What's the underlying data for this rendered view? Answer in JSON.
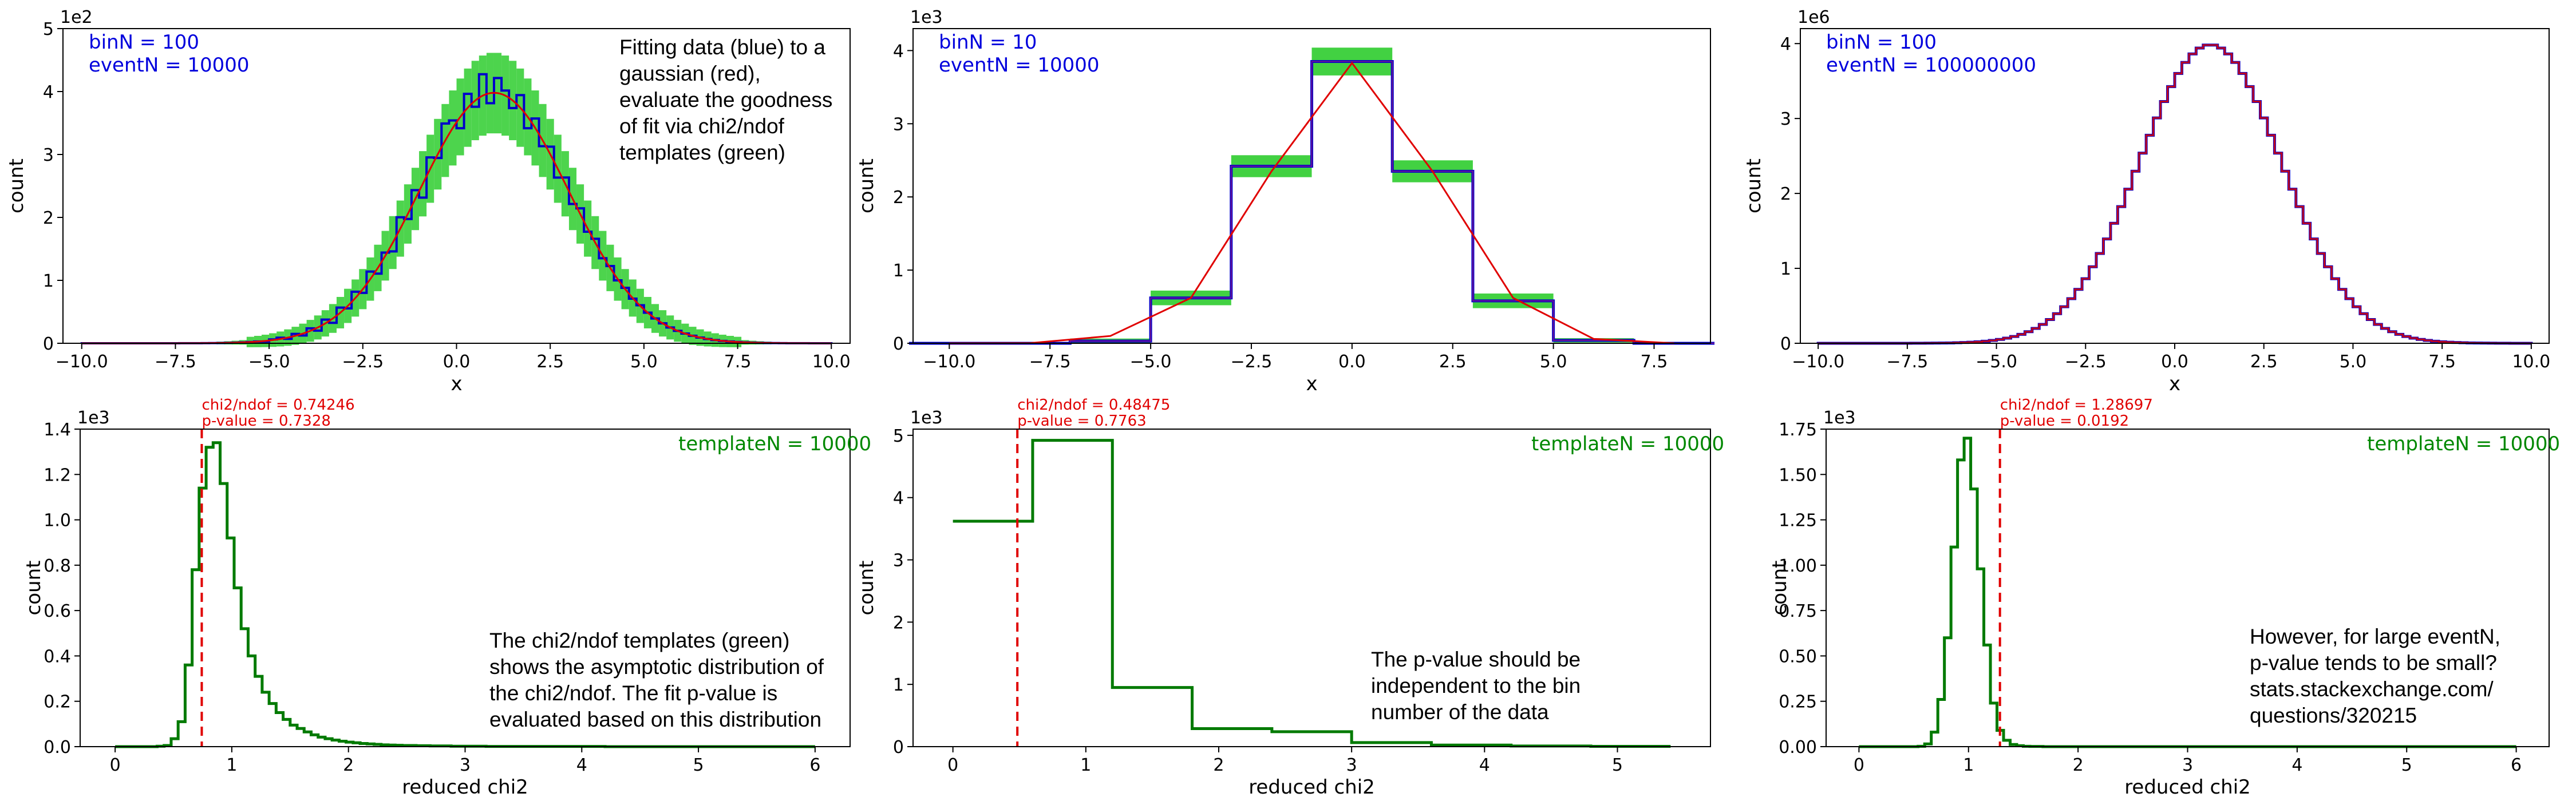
{
  "colors": {
    "data": "#0000cc",
    "fit": "#e00000",
    "template": "#2ecc2e",
    "chi_hist": "#007a00",
    "info": "#0000dd",
    "template_text": "#008800"
  },
  "chart_data": [
    {
      "type": "histogram",
      "xlabel": "x",
      "ylabel": "count",
      "y_offset_label": "1e2",
      "xlim": [
        -10.5,
        10.5
      ],
      "ylim": [
        0,
        500
      ],
      "xticks": [
        -10,
        -7.5,
        -5,
        -2.5,
        0,
        2.5,
        5,
        7.5,
        10
      ],
      "xtick_labels": [
        "−10.0",
        "−7.5",
        "−5.0",
        "−2.5",
        "0.0",
        "2.5",
        "5.0",
        "7.5",
        "10.0"
      ],
      "yticks": [
        0,
        100,
        200,
        300,
        400,
        500
      ],
      "ytick_labels": [
        "0",
        "1",
        "2",
        "3",
        "4",
        "5"
      ],
      "info": [
        "binN = 100",
        "eventN = 10000"
      ],
      "note": [
        "Fitting data (blue) to a",
        "gaussian (red),",
        "evaluate the goodness",
        "of fit via chi2/ndof",
        "templates (green)"
      ],
      "gaussian": {
        "mean": 1.0,
        "sigma": 2.0,
        "peak": 398
      },
      "bins": {
        "start": -10,
        "end": 10,
        "count": 100
      },
      "template_band_width": 60,
      "data_residuals": [
        0,
        0,
        0,
        0,
        0,
        0,
        0,
        0,
        0,
        0,
        0,
        0,
        0,
        0,
        0,
        0,
        0,
        0,
        0,
        0,
        0,
        0,
        0,
        0,
        -1,
        1,
        2,
        -2,
        3,
        -3,
        4,
        -5,
        6,
        -7,
        8,
        -4,
        10,
        -6,
        12,
        -9,
        5,
        -14,
        18,
        -8,
        14,
        -22,
        18,
        -6,
        27,
        12,
        -18,
        22,
        -10,
        34,
        -16,
        24,
        8,
        -12,
        20,
        -18,
        15,
        -9,
        12,
        -14,
        10,
        -8,
        9,
        -5,
        6,
        -4,
        3,
        -2,
        2,
        -1,
        1,
        0,
        0,
        0,
        0,
        0,
        0,
        0,
        0,
        0,
        0,
        0,
        0,
        0,
        0,
        0,
        0,
        0,
        0,
        0,
        0,
        0,
        0,
        0,
        0,
        0
      ]
    },
    {
      "type": "histogram",
      "xlabel": "x",
      "ylabel": "count",
      "y_offset_label": "1e3",
      "xlim": [
        -10.9,
        8.9
      ],
      "ylim": [
        0,
        4300
      ],
      "xticks": [
        -10,
        -7.5,
        -5,
        -2.5,
        0,
        2.5,
        5,
        7.5
      ],
      "xtick_labels": [
        "−10.0",
        "−7.5",
        "−5.0",
        "−2.5",
        "0.0",
        "2.5",
        "5.0",
        "7.5"
      ],
      "yticks": [
        0,
        1000,
        2000,
        3000,
        4000
      ],
      "ytick_labels": [
        "0",
        "1",
        "2",
        "3",
        "4"
      ],
      "info": [
        "binN = 10",
        "eventN = 10000"
      ],
      "bin_edges": [
        -11,
        -9,
        -7,
        -5,
        -3,
        -1,
        1,
        3,
        5,
        7,
        9
      ],
      "data_values": [
        0,
        0,
        30,
        620,
        2420,
        3850,
        2350,
        580,
        40,
        0
      ],
      "template_band": [
        0,
        0,
        70,
        200,
        300,
        380,
        300,
        200,
        60,
        0
      ],
      "fit_points": [
        [
          -10,
          0
        ],
        [
          -8,
          2
        ],
        [
          -6,
          100
        ],
        [
          -4,
          620
        ],
        [
          -2,
          2350
        ],
        [
          0,
          3830
        ],
        [
          2,
          2350
        ],
        [
          4,
          620
        ],
        [
          6,
          60
        ],
        [
          8,
          0
        ]
      ]
    },
    {
      "type": "histogram",
      "xlabel": "x",
      "ylabel": "count",
      "y_offset_label": "1e6",
      "xlim": [
        -10.5,
        10.5
      ],
      "ylim": [
        0,
        4200000
      ],
      "xticks": [
        -10,
        -7.5,
        -5,
        -2.5,
        0,
        2.5,
        5,
        7.5,
        10
      ],
      "xtick_labels": [
        "−10.0",
        "−7.5",
        "−5.0",
        "−2.5",
        "0.0",
        "2.5",
        "5.0",
        "7.5",
        "10.0"
      ],
      "yticks": [
        0,
        1000000,
        2000000,
        3000000,
        4000000
      ],
      "ytick_labels": [
        "0",
        "1",
        "2",
        "3",
        "4"
      ],
      "info": [
        "binN = 100",
        "eventN = 100000000"
      ],
      "gaussian": {
        "mean": 1.0,
        "sigma": 2.0,
        "peak": 3985000
      },
      "bins": {
        "start": -10,
        "end": 10,
        "count": 100
      }
    },
    {
      "type": "histogram",
      "xlabel": "reduced chi2",
      "ylabel": "count",
      "y_offset_label": "1e3",
      "xlim": [
        -0.3,
        6.3
      ],
      "ylim": [
        0,
        1400
      ],
      "xticks": [
        0,
        1,
        2,
        3,
        4,
        5,
        6
      ],
      "xtick_labels": [
        "0",
        "1",
        "2",
        "3",
        "4",
        "5",
        "6"
      ],
      "yticks": [
        0,
        200,
        400,
        600,
        800,
        1000,
        1200,
        1400
      ],
      "ytick_labels": [
        "0.0",
        "0.2",
        "0.4",
        "0.6",
        "0.8",
        "1.0",
        "1.2",
        "1.4"
      ],
      "template_label": "templateN = 10000",
      "chi2_line": 0.74246,
      "chi2_labels": [
        "chi2/ndof = 0.74246",
        "p-value = 0.7328"
      ],
      "note": [
        "The chi2/ndof templates (green)",
        "shows the asymptotic distribution of",
        "the chi2/ndof. The fit p-value is",
        "evaluated based on this distribution"
      ],
      "bin_start": 0,
      "bin_width": 0.06,
      "counts": [
        0,
        0,
        0,
        0,
        0,
        0,
        2,
        5,
        35,
        110,
        360,
        780,
        1140,
        1320,
        1340,
        1160,
        920,
        700,
        520,
        400,
        310,
        240,
        190,
        150,
        120,
        95,
        80,
        65,
        52,
        42,
        35,
        29,
        24,
        20,
        17,
        14,
        12,
        10,
        8,
        7,
        6,
        5,
        5,
        4,
        4,
        3,
        3,
        3,
        2,
        2,
        2,
        2,
        2,
        1,
        1,
        1,
        1,
        1,
        1,
        1,
        1,
        1,
        1,
        1,
        1,
        1,
        1,
        1,
        1,
        1,
        0,
        0,
        0,
        0,
        0,
        0,
        0,
        0,
        0,
        0,
        0,
        0,
        0,
        0,
        0,
        0,
        0,
        0,
        0,
        0,
        0,
        0,
        0,
        0,
        0,
        0,
        0,
        0,
        0,
        0
      ]
    },
    {
      "type": "histogram",
      "xlabel": "reduced chi2",
      "ylabel": "count",
      "y_offset_label": "1e3",
      "xlim": [
        -0.3,
        5.7
      ],
      "ylim": [
        0,
        5100
      ],
      "xticks": [
        0,
        1,
        2,
        3,
        4,
        5
      ],
      "xtick_labels": [
        "0",
        "1",
        "2",
        "3",
        "4",
        "5"
      ],
      "yticks": [
        0,
        1000,
        2000,
        3000,
        4000,
        5000
      ],
      "ytick_labels": [
        "0",
        "1",
        "2",
        "3",
        "4",
        "5"
      ],
      "template_label": "templateN = 10000",
      "chi2_line": 0.48475,
      "chi2_labels": [
        "chi2/ndof = 0.48475",
        "p-value = 0.7763"
      ],
      "note": [
        "The p-value should be",
        "independent to the bin",
        "number of the data"
      ],
      "bin_edges": [
        0,
        0.6,
        1.2,
        1.8,
        2.4,
        3.0,
        3.6,
        4.2,
        4.8,
        5.4
      ],
      "counts": [
        3620,
        4920,
        950,
        290,
        240,
        65,
        25,
        10,
        5
      ]
    },
    {
      "type": "histogram",
      "xlabel": "reduced chi2",
      "ylabel": "count",
      "y_offset_label": "1e3",
      "xlim": [
        -0.3,
        6.3
      ],
      "ylim": [
        0,
        1750
      ],
      "xticks": [
        0,
        1,
        2,
        3,
        4,
        5,
        6
      ],
      "xtick_labels": [
        "0",
        "1",
        "2",
        "3",
        "4",
        "5",
        "6"
      ],
      "yticks": [
        0,
        250,
        500,
        750,
        1000,
        1250,
        1500,
        1750
      ],
      "ytick_labels": [
        "0.00",
        "0.25",
        "0.50",
        "0.75",
        "1.00",
        "1.25",
        "1.50",
        "1.75"
      ],
      "template_label": "templateN = 10000",
      "chi2_line": 1.28697,
      "chi2_labels": [
        "chi2/ndof = 1.28697",
        "p-value = 0.0192"
      ],
      "note": [
        "However, for large eventN,",
        "p-value tends to be small?",
        "stats.stackexchange.com/",
        "questions/320215"
      ],
      "bin_start": 0,
      "bin_width": 0.06,
      "counts": [
        0,
        0,
        0,
        0,
        0,
        0,
        0,
        0,
        0,
        2,
        15,
        80,
        260,
        600,
        1100,
        1580,
        1700,
        1420,
        980,
        560,
        240,
        90,
        35,
        12,
        5,
        2,
        1,
        1,
        0,
        0,
        0,
        0,
        0,
        0,
        0,
        0,
        0,
        0,
        0,
        0,
        0,
        0,
        0,
        0,
        0,
        0,
        0,
        0,
        0,
        0,
        0,
        0,
        0,
        0,
        0,
        0,
        0,
        0,
        0,
        0,
        0,
        0,
        0,
        0,
        0,
        0,
        0,
        0,
        0,
        0,
        0,
        0,
        0,
        0,
        0,
        0,
        0,
        0,
        0,
        0,
        0,
        0,
        0,
        0,
        0,
        0,
        0,
        0,
        0,
        0,
        0,
        0,
        0,
        0,
        0,
        0,
        0,
        0,
        0,
        0
      ]
    }
  ]
}
